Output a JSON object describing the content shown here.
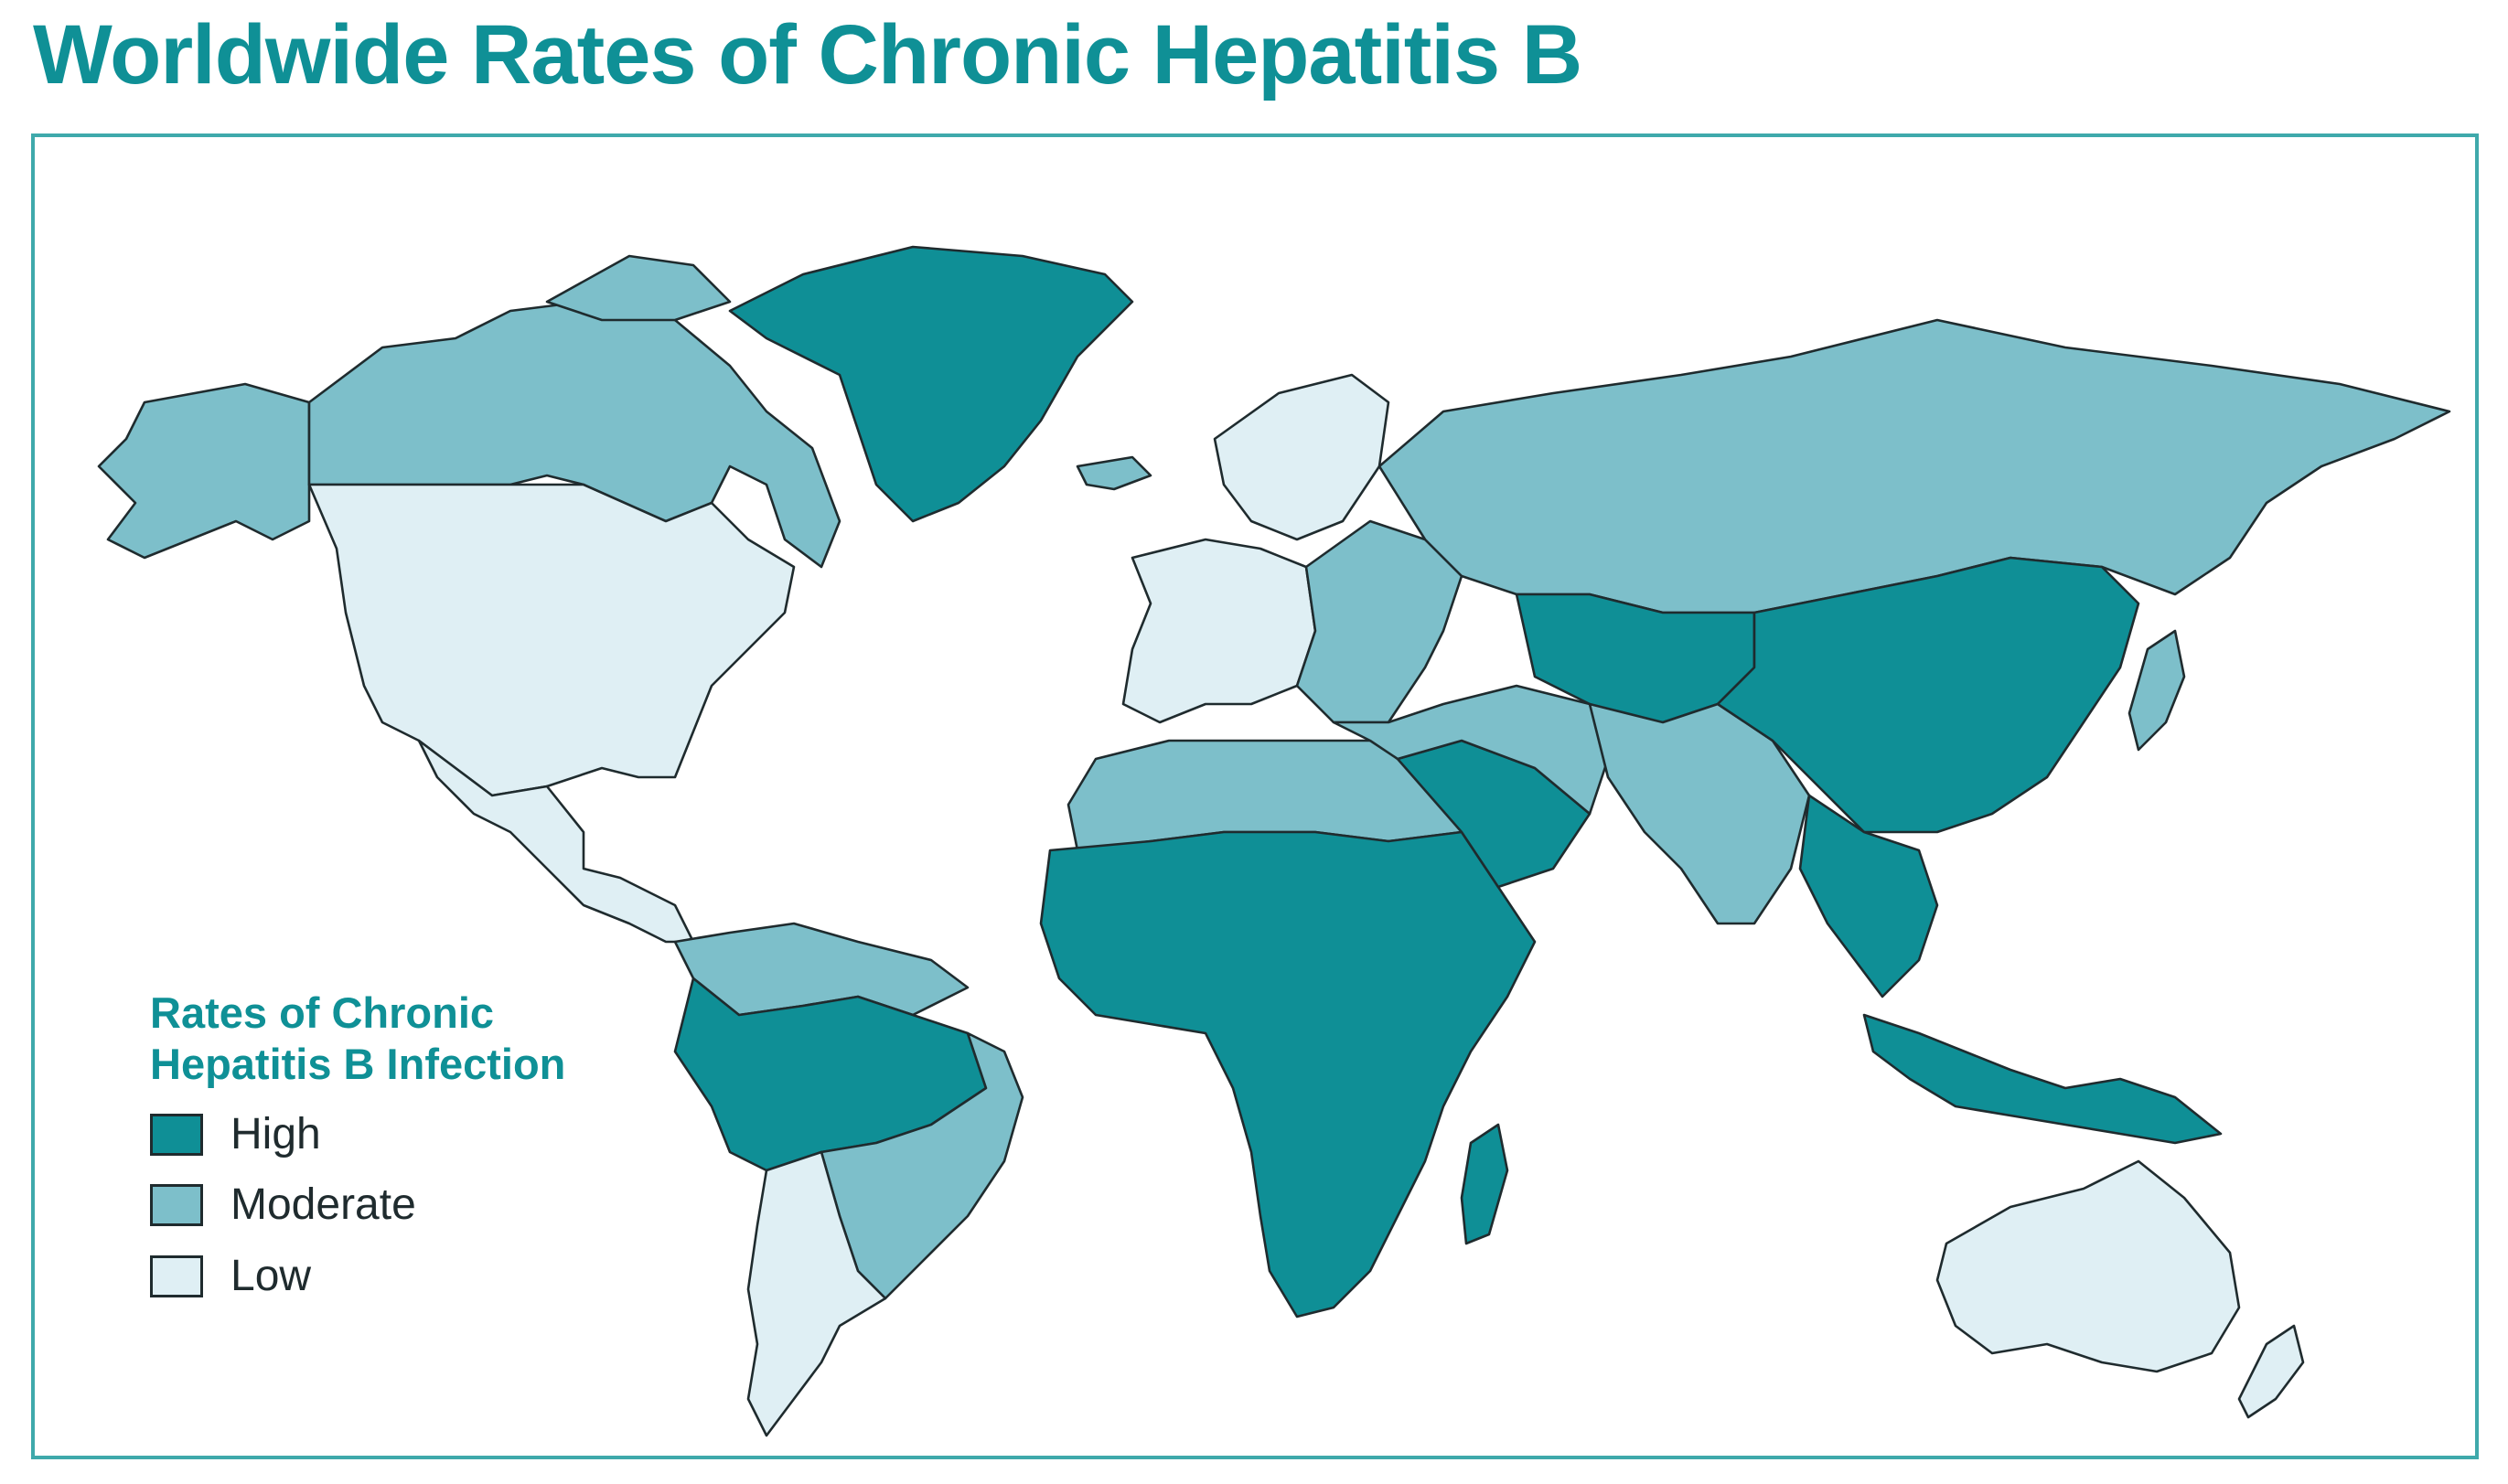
{
  "title": "Worldwide Rates of Chronic Hepatitis B",
  "colors": {
    "accent": "#0f9096",
    "high": "#0f8f96",
    "moderate": "#7dbfca",
    "low": "#dfeff4",
    "border": "#1f2b2e"
  },
  "legend": {
    "title_line1": "Rates of Chronic",
    "title_line2": "Hepatitis B Infection",
    "items": [
      {
        "label": "High",
        "level": "high"
      },
      {
        "label": "Moderate",
        "level": "moderate"
      },
      {
        "label": "Low",
        "level": "low"
      }
    ]
  },
  "regions": [
    {
      "name": "Alaska",
      "level": "moderate"
    },
    {
      "name": "Canada",
      "level": "moderate"
    },
    {
      "name": "Greenland",
      "level": "high"
    },
    {
      "name": "United States",
      "level": "low"
    },
    {
      "name": "Mexico and Central America",
      "level": "low"
    },
    {
      "name": "Northern South America",
      "level": "moderate"
    },
    {
      "name": "Amazon Basin",
      "level": "high"
    },
    {
      "name": "Brazil",
      "level": "moderate"
    },
    {
      "name": "Southern South America",
      "level": "low"
    },
    {
      "name": "Western Europe",
      "level": "low"
    },
    {
      "name": "Eastern Europe",
      "level": "moderate"
    },
    {
      "name": "Russia",
      "level": "moderate"
    },
    {
      "name": "North Africa",
      "level": "moderate"
    },
    {
      "name": "Sub-Saharan Africa",
      "level": "high"
    },
    {
      "name": "Madagascar",
      "level": "high"
    },
    {
      "name": "Arabian Peninsula",
      "level": "high"
    },
    {
      "name": "Middle East",
      "level": "moderate"
    },
    {
      "name": "Central Asia",
      "level": "high"
    },
    {
      "name": "South Asia",
      "level": "moderate"
    },
    {
      "name": "China and Mongolia",
      "level": "high"
    },
    {
      "name": "Southeast Asia",
      "level": "high"
    },
    {
      "name": "Indonesia and New Guinea",
      "level": "high"
    },
    {
      "name": "Japan",
      "level": "moderate"
    },
    {
      "name": "Australia",
      "level": "low"
    },
    {
      "name": "New Zealand",
      "level": "low"
    },
    {
      "name": "Iceland",
      "level": "moderate"
    },
    {
      "name": "Scandinavia",
      "level": "low"
    }
  ]
}
